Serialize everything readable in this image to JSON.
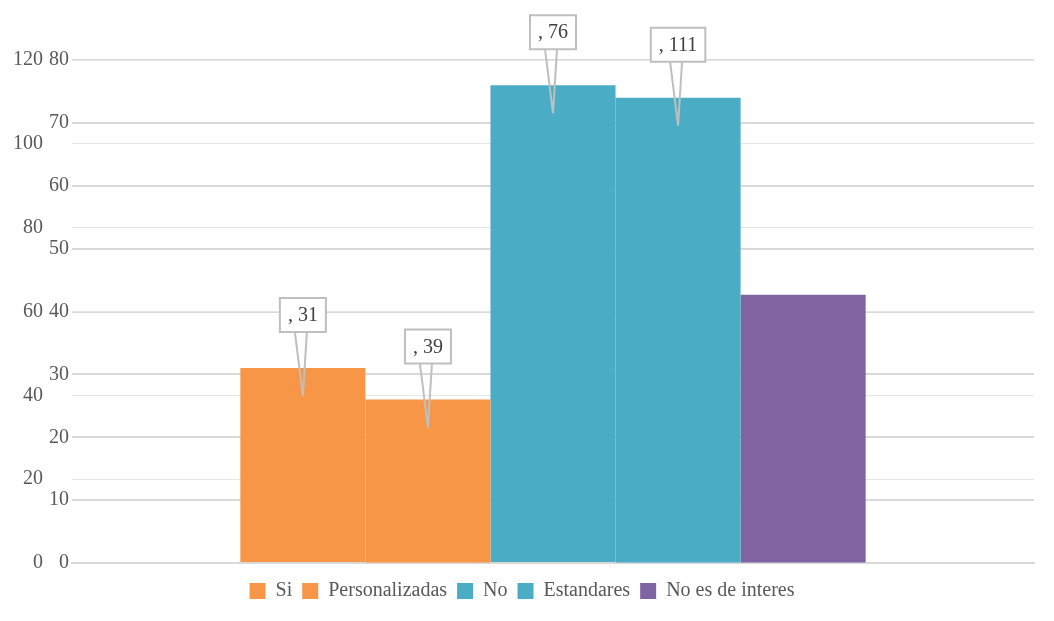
{
  "chart_data": {
    "type": "bar",
    "categories": [
      null
    ],
    "series": [
      {
        "name": "Si",
        "color": "#f79646",
        "values": [
          31
        ],
        "value_labels": [
          ", 31"
        ]
      },
      {
        "name": "Personalizadas",
        "color": "#f79646",
        "values": [
          39
        ],
        "axis": "y2",
        "value_labels": [
          ", 39"
        ]
      },
      {
        "name": "No",
        "color": "#4bacc6",
        "values": [
          76
        ],
        "value_labels": [
          ", 76"
        ]
      },
      {
        "name": "Estandares",
        "color": "#4bacc6",
        "values": [
          111
        ],
        "axis": "y2",
        "value_labels": [
          ", 111"
        ]
      },
      {
        "name": "No es de interes",
        "color": "#8064a2",
        "values": [
          64
        ],
        "axis": "y2",
        "value_labels": [
          null
        ]
      }
    ],
    "ylim": [
      0,
      80
    ],
    "yticks": [
      0,
      10,
      20,
      30,
      40,
      50,
      60,
      70,
      80
    ],
    "y2lim": [
      0,
      120
    ],
    "y2ticks": [
      0,
      20,
      40,
      60,
      80,
      100,
      120
    ],
    "grid": true,
    "legend": "bottom"
  }
}
